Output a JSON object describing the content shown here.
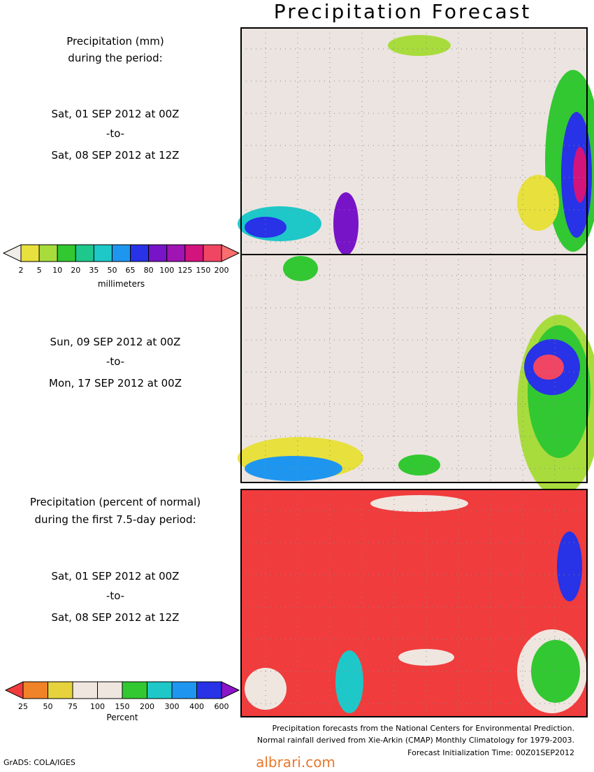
{
  "title": "Precipitation Forecast",
  "panels": [
    {
      "heading": [
        "Precipitation (mm)",
        "during the period:"
      ],
      "start": "Sat, 01 SEP 2012 at 00Z",
      "sep": "-to-",
      "end": "Sat, 08 SEP 2012 at 12Z"
    },
    {
      "start": "Sun, 09 SEP 2012 at 00Z",
      "sep": "-to-",
      "end": "Mon, 17 SEP 2012 at 00Z"
    },
    {
      "heading": [
        "Precipitation (percent of normal)",
        "during the first 7.5-day period:"
      ],
      "start": "Sat, 01 SEP 2012 at 00Z",
      "sep": "-to-",
      "end": "Sat, 08 SEP 2012 at 12Z"
    }
  ],
  "colorbars": [
    {
      "labels": [
        2,
        5,
        10,
        20,
        35,
        50,
        65,
        80,
        100,
        125,
        150,
        200
      ],
      "unit": "millimeters",
      "colors": [
        "#f0ece8",
        "#e8e03c",
        "#a8dc3c",
        "#32c832",
        "#1ec88c",
        "#1ec8c8",
        "#1e96f0",
        "#2832e6",
        "#7814c8",
        "#a014b4",
        "#d2147c",
        "#f04664",
        "#fa6e6e"
      ]
    },
    {
      "labels": [
        25,
        50,
        75,
        100,
        150,
        200,
        300,
        400,
        600
      ],
      "unit": "Percent",
      "colors": [
        "#f03c3c",
        "#f08228",
        "#e6d23c",
        "#f0e6e0",
        "#f0e6e0",
        "#32c832",
        "#1ec8c8",
        "#1e96f0",
        "#2832e6",
        "#8c14c8"
      ]
    }
  ],
  "footer": [
    "Precipitation forecasts from the National Centers for Environmental Prediction.",
    "Normal rainfall derived from Xie-Arkin (CMAP) Monthly Climatology for 1979-2003.",
    "Forecast Initialization Time: 00Z01SEP2012"
  ],
  "credit": "GrADS: COLA/IGES",
  "watermark": "albrari.com"
}
